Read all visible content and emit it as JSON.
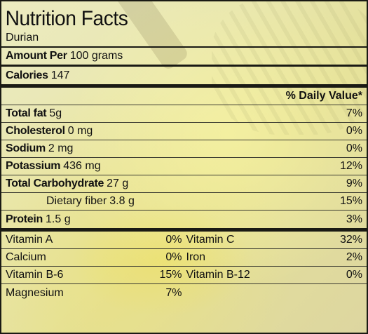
{
  "title": "Nutrition Facts",
  "food": "Durian",
  "amount_per": {
    "label": "Amount Per",
    "value": "100 grams"
  },
  "calories": {
    "label": "Calories",
    "value": "147"
  },
  "daily_value_header": "% Daily Value*",
  "nutrients": [
    {
      "label": "Total fat",
      "amount": "5g",
      "dv": "7%",
      "bold": true,
      "indent": false
    },
    {
      "label": "Cholesterol",
      "amount": "0 mg",
      "dv": "0%",
      "bold": true,
      "indent": false
    },
    {
      "label": "Sodium",
      "amount": "2 mg",
      "dv": "0%",
      "bold": true,
      "indent": false
    },
    {
      "label": "Potassium",
      "amount": "436 mg",
      "dv": "12%",
      "bold": true,
      "indent": false
    },
    {
      "label": "Total Carbohydrate",
      "amount": "27 g",
      "dv": "9%",
      "bold": true,
      "indent": false
    },
    {
      "label": "Dietary fiber",
      "amount": "3.8 g",
      "dv": "15%",
      "bold": false,
      "indent": true
    },
    {
      "label": "Protein",
      "amount": "1.5 g",
      "dv": "3%",
      "bold": true,
      "indent": false
    }
  ],
  "vitamins": [
    {
      "left": {
        "name": "Vitamin A",
        "pct": "0%"
      },
      "right": {
        "name": "Vitamin C",
        "pct": "32%"
      }
    },
    {
      "left": {
        "name": "Calcium",
        "pct": "0%"
      },
      "right": {
        "name": "Iron",
        "pct": "2%"
      }
    },
    {
      "left": {
        "name": "Vitamin B-6",
        "pct": "15%"
      },
      "right": {
        "name": "Vitamin B-12",
        "pct": "0%"
      }
    },
    {
      "left": {
        "name": "Magnesium",
        "pct": "7%"
      },
      "right": {
        "name": "",
        "pct": ""
      }
    }
  ]
}
